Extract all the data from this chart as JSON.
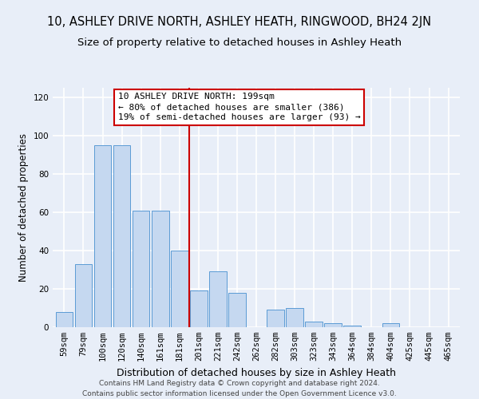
{
  "title": "10, ASHLEY DRIVE NORTH, ASHLEY HEATH, RINGWOOD, BH24 2JN",
  "subtitle": "Size of property relative to detached houses in Ashley Heath",
  "xlabel": "Distribution of detached houses by size in Ashley Heath",
  "ylabel": "Number of detached properties",
  "categories": [
    "59sqm",
    "79sqm",
    "100sqm",
    "120sqm",
    "140sqm",
    "161sqm",
    "181sqm",
    "201sqm",
    "221sqm",
    "242sqm",
    "262sqm",
    "282sqm",
    "303sqm",
    "323sqm",
    "343sqm",
    "364sqm",
    "384sqm",
    "404sqm",
    "425sqm",
    "445sqm",
    "465sqm"
  ],
  "values": [
    8,
    33,
    95,
    95,
    61,
    61,
    40,
    19,
    29,
    18,
    0,
    9,
    10,
    3,
    2,
    1,
    0,
    2,
    0,
    0,
    0
  ],
  "bar_color": "#c5d8f0",
  "bar_edge_color": "#5b9bd5",
  "reference_line_idx": 7,
  "annotation_text": "10 ASHLEY DRIVE NORTH: 199sqm\n← 80% of detached houses are smaller (386)\n19% of semi-detached houses are larger (93) →",
  "annotation_box_color": "#ffffff",
  "annotation_box_edge_color": "#cc0000",
  "ylim": [
    0,
    125
  ],
  "yticks": [
    0,
    20,
    40,
    60,
    80,
    100,
    120
  ],
  "footer_text": "Contains HM Land Registry data © Crown copyright and database right 2024.\nContains public sector information licensed under the Open Government Licence v3.0.",
  "bg_color": "#e8eef8",
  "grid_color": "#ffffff",
  "title_fontsize": 10.5,
  "subtitle_fontsize": 9.5,
  "xlabel_fontsize": 9,
  "ylabel_fontsize": 8.5,
  "tick_fontsize": 7.5,
  "annotation_fontsize": 8,
  "footer_fontsize": 6.5
}
